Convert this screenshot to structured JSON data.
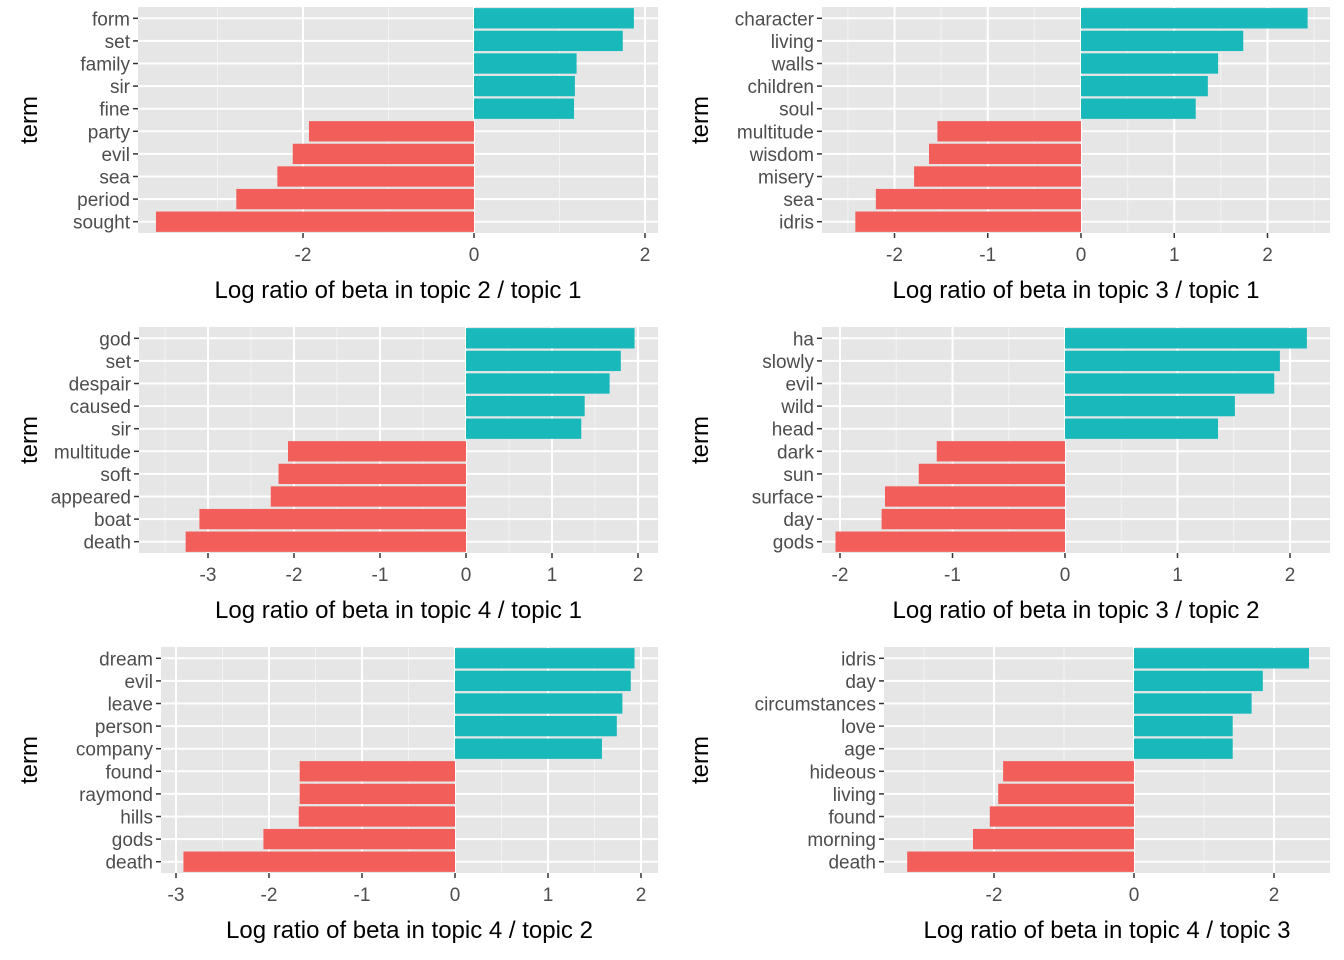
{
  "colors": {
    "positive": "#19B8BB",
    "negative": "#F25F5B",
    "panel_background": "#E6E6E6",
    "grid_major": "#FFFFFF",
    "grid_minor": "#F2F2F2",
    "tick_text": "#4D4D4D"
  },
  "chart_data": [
    {
      "type": "bar",
      "orientation": "horizontal",
      "xlabel": "Log ratio of beta in topic 2 / topic 1",
      "ylabel": "term",
      "grid": true,
      "xlim": [
        -3.72,
        2.0
      ],
      "xticks": [
        -2,
        0,
        2
      ],
      "xtick_labels": [
        "-2",
        "0",
        "2"
      ],
      "terms": [
        "form",
        "set",
        "family",
        "sir",
        "fine",
        "party",
        "evil",
        "sea",
        "period",
        "sought"
      ],
      "values": [
        1.87,
        1.74,
        1.2,
        1.18,
        1.17,
        -1.93,
        -2.12,
        -2.3,
        -2.78,
        -3.72
      ]
    },
    {
      "type": "bar",
      "orientation": "horizontal",
      "xlabel": "Log ratio of beta in topic 3 / topic 1",
      "ylabel": "term",
      "grid": true,
      "xlim": [
        -2.42,
        2.43
      ],
      "xticks": [
        -2,
        -1,
        0,
        1,
        2
      ],
      "xtick_labels": [
        "-2",
        "-1",
        "0",
        "1",
        "2"
      ],
      "terms": [
        "character",
        "living",
        "walls",
        "children",
        "soul",
        "multitude",
        "wisdom",
        "misery",
        "sea",
        "idris"
      ],
      "values": [
        2.43,
        1.74,
        1.47,
        1.36,
        1.23,
        -1.54,
        -1.63,
        -1.79,
        -2.2,
        -2.42
      ]
    },
    {
      "type": "bar",
      "orientation": "horizontal",
      "xlabel": "Log ratio of beta in topic 4 / topic 1",
      "ylabel": "term",
      "grid": true,
      "xlim": [
        -3.26,
        1.96
      ],
      "xticks": [
        -3,
        -2,
        -1,
        0,
        1,
        2
      ],
      "xtick_labels": [
        "-3",
        "-2",
        "-1",
        "0",
        "1",
        "2"
      ],
      "terms": [
        "god",
        "set",
        "despair",
        "caused",
        "sir",
        "multitude",
        "soft",
        "appeared",
        "boat",
        "death"
      ],
      "values": [
        1.96,
        1.8,
        1.67,
        1.38,
        1.34,
        -2.07,
        -2.18,
        -2.27,
        -3.1,
        -3.26
      ]
    },
    {
      "type": "bar",
      "orientation": "horizontal",
      "xlabel": "Log ratio of beta in topic 3 / topic 2",
      "ylabel": "term",
      "grid": true,
      "xlim": [
        -2.04,
        2.15
      ],
      "xticks": [
        -2,
        -1,
        0,
        1,
        2
      ],
      "xtick_labels": [
        "-2",
        "-1",
        "0",
        "1",
        "2"
      ],
      "terms": [
        "ha",
        "slowly",
        "evil",
        "wild",
        "head",
        "dark",
        "sun",
        "surface",
        "day",
        "gods"
      ],
      "values": [
        2.15,
        1.91,
        1.86,
        1.51,
        1.36,
        -1.14,
        -1.3,
        -1.6,
        -1.63,
        -2.04
      ]
    },
    {
      "type": "bar",
      "orientation": "horizontal",
      "xlabel": "Log ratio of beta in topic 4 / topic 2",
      "ylabel": "term",
      "grid": true,
      "xlim": [
        -2.92,
        1.93
      ],
      "xticks": [
        -3,
        -2,
        -1,
        0,
        1,
        2
      ],
      "xtick_labels": [
        "-3",
        "-2",
        "-1",
        "0",
        "1",
        "2"
      ],
      "terms": [
        "dream",
        "evil",
        "leave",
        "person",
        "company",
        "found",
        "raymond",
        "hills",
        "gods",
        "death"
      ],
      "values": [
        1.93,
        1.89,
        1.8,
        1.74,
        1.58,
        -1.67,
        -1.67,
        -1.68,
        -2.06,
        -2.92
      ]
    },
    {
      "type": "bar",
      "orientation": "horizontal",
      "xlabel": "Log ratio of beta in topic 4 / topic 3",
      "ylabel": "term",
      "grid": true,
      "xlim": [
        -3.24,
        2.5
      ],
      "xticks": [
        -2,
        0,
        2
      ],
      "xtick_labels": [
        "-2",
        "0",
        "2"
      ],
      "terms": [
        "idris",
        "day",
        "circumstances",
        "love",
        "age",
        "hideous",
        "living",
        "found",
        "morning",
        "death"
      ],
      "values": [
        2.5,
        1.84,
        1.68,
        1.41,
        1.41,
        -1.87,
        -1.94,
        -2.06,
        -2.3,
        -3.24
      ]
    }
  ]
}
